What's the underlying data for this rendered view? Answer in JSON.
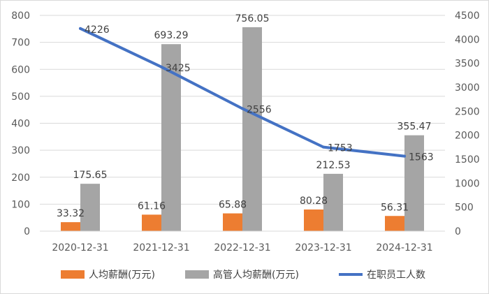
{
  "chart_data": {
    "type": "bar",
    "categories": [
      "2020-12-31",
      "2021-12-31",
      "2022-12-31",
      "2023-12-31",
      "2024-12-31"
    ],
    "series": [
      {
        "name": "人均薪酬(万元)",
        "type": "bar",
        "axis": "left",
        "color": "#ED7D31",
        "values": [
          33.32,
          61.16,
          65.88,
          80.28,
          56.31
        ],
        "labels": [
          "33.32",
          "61.16",
          "65.88",
          "80.28",
          "56.31"
        ]
      },
      {
        "name": "高管人均薪酬(万元)",
        "type": "bar",
        "axis": "left",
        "color": "#A5A5A5",
        "values": [
          175.65,
          693.29,
          756.05,
          212.53,
          355.47
        ],
        "labels": [
          "175.65",
          "693.29",
          "756.05",
          "212.53",
          "355.47"
        ]
      },
      {
        "name": "在职员工人数",
        "type": "line",
        "axis": "right",
        "color": "#4472C4",
        "values": [
          4226,
          3425,
          2556,
          1753,
          1563
        ],
        "labels": [
          "4226",
          "3425",
          "2556",
          "1753",
          "1563"
        ]
      }
    ],
    "y_left": {
      "ylim": [
        0,
        800
      ],
      "ticks": [
        "0",
        "100",
        "200",
        "300",
        "400",
        "500",
        "600",
        "700",
        "800"
      ]
    },
    "y_right": {
      "ylim": [
        0,
        4500
      ],
      "ticks": [
        "0",
        "500",
        "1000",
        "1500",
        "2000",
        "2500",
        "3000",
        "3500",
        "4000",
        "4500"
      ]
    },
    "grid": true,
    "legend_position": "bottom"
  }
}
